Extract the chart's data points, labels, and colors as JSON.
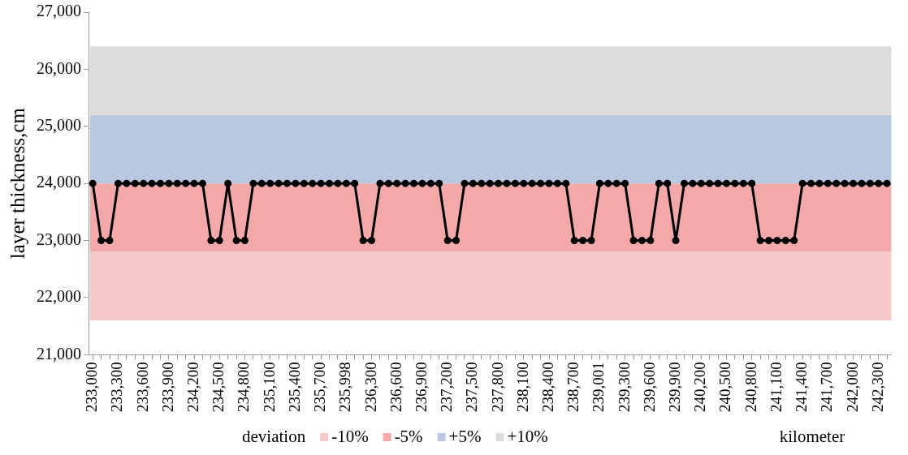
{
  "chart_data": {
    "type": "line",
    "xlabel": "kilometer",
    "ylabel": "layer thickness,cm",
    "legend_title": "deviation",
    "legend": "bottom",
    "grid": false,
    "marker": "circle",
    "line_style": "solid",
    "categories": [
      "233,000",
      null,
      null,
      "233,300",
      null,
      null,
      "233,600",
      null,
      null,
      "233,900",
      null,
      null,
      "234,200",
      null,
      null,
      "234,500",
      null,
      null,
      "234,800",
      null,
      null,
      "235,100",
      null,
      null,
      "235,400",
      null,
      null,
      "235,700",
      null,
      null,
      "235,998",
      null,
      null,
      "236,300",
      null,
      null,
      "236,600",
      null,
      null,
      "236,900",
      null,
      null,
      "237,200",
      null,
      null,
      "237,500",
      null,
      null,
      "237,800",
      null,
      null,
      "238,100",
      null,
      null,
      "238,400",
      null,
      null,
      "238,700",
      null,
      null,
      "239,001",
      null,
      null,
      "239,300",
      null,
      null,
      "239,600",
      null,
      null,
      "239,900",
      null,
      null,
      "240,200",
      null,
      null,
      "240,500",
      null,
      null,
      "240,800",
      null,
      null,
      "241,100",
      null,
      null,
      "241,400",
      null,
      null,
      "241,700",
      null,
      null,
      "242,000",
      null,
      null,
      "242,300",
      null
    ],
    "series": [
      {
        "color": "#000000",
        "values": [
          24000,
          23000,
          23000,
          24000,
          24000,
          24000,
          24000,
          24000,
          24000,
          24000,
          24000,
          24000,
          24000,
          24000,
          23000,
          23000,
          24000,
          23000,
          23000,
          24000,
          24000,
          24000,
          24000,
          24000,
          24000,
          24000,
          24000,
          24000,
          24000,
          24000,
          24000,
          24000,
          23000,
          23000,
          24000,
          24000,
          24000,
          24000,
          24000,
          24000,
          24000,
          24000,
          23000,
          23000,
          24000,
          24000,
          24000,
          24000,
          24000,
          24000,
          24000,
          24000,
          24000,
          24000,
          24000,
          24000,
          24000,
          23000,
          23000,
          23000,
          24000,
          24000,
          24000,
          24000,
          23000,
          23000,
          23000,
          24000,
          24000,
          23000,
          24000,
          24000,
          24000,
          24000,
          24000,
          24000,
          24000,
          24000,
          24000,
          23000,
          23000,
          23000,
          23000,
          23000,
          24000,
          24000,
          24000,
          24000,
          24000,
          24000,
          24000,
          24000,
          24000,
          24000,
          24000
        ]
      }
    ],
    "ylim": [
      21000,
      27000
    ],
    "yticks": [
      {
        "value": 21000,
        "label": "21,000"
      },
      {
        "value": 22000,
        "label": "22,000"
      },
      {
        "value": 23000,
        "label": "23,000"
      },
      {
        "value": 24000,
        "label": "24,000"
      },
      {
        "value": 25000,
        "label": "25,000"
      },
      {
        "value": 26000,
        "label": "26,000"
      },
      {
        "value": 27000,
        "label": "27,000"
      }
    ],
    "bands": [
      {
        "axis": "y",
        "from": 21600,
        "to": 22800,
        "label": "-10%",
        "color": "#f6c9c9"
      },
      {
        "axis": "y",
        "from": 22800,
        "to": 24000,
        "label": "-5%",
        "color": "#f3a9a9"
      },
      {
        "axis": "y",
        "from": 24000,
        "to": 25200,
        "label": "+5%",
        "color": "#b9c8df"
      },
      {
        "axis": "y",
        "from": 25200,
        "to": 26400,
        "label": "+10%",
        "color": "#dcdcdc"
      }
    ]
  }
}
